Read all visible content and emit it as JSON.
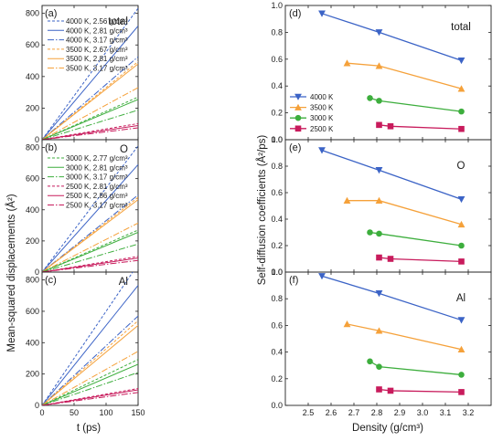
{
  "chart_data": [
    {
      "type": "line",
      "panel": "(a)",
      "label": "total",
      "xlim": [
        0,
        150
      ],
      "ylim": [
        0,
        850
      ],
      "series": [
        {
          "name": "4000 K, 2.56 g/cm³",
          "color": "#3b63c6",
          "dash": "3,2",
          "slope": 5.55
        },
        {
          "name": "4000 K, 2.81 g/cm³",
          "color": "#3b63c6",
          "dash": "",
          "slope": 4.8
        },
        {
          "name": "4000 K, 3.17 g/cm³",
          "color": "#3b63c6",
          "dash": "7,2,1.5,2",
          "slope": 3.5
        },
        {
          "name": "3500 K, 2.67 g/cm³",
          "color": "#f5a13a",
          "dash": "3,2",
          "slope": 3.3
        },
        {
          "name": "3500 K, 2.81 g/cm³",
          "color": "#f5a13a",
          "dash": "",
          "slope": 3.2
        },
        {
          "name": "3500 K, 3.17 g/cm³",
          "color": "#f5a13a",
          "dash": "7,2,1.5,2",
          "slope": 2.2
        },
        {
          "color": "#3dae3d",
          "dash": "3,2",
          "slope": 1.8
        },
        {
          "color": "#3dae3d",
          "dash": "",
          "slope": 1.7
        },
        {
          "color": "#3dae3d",
          "dash": "7,2,1.5,2",
          "slope": 1.25
        },
        {
          "color": "#c81b5c",
          "dash": "3,2",
          "slope": 0.68
        },
        {
          "color": "#c81b5c",
          "dash": "",
          "slope": 0.6
        },
        {
          "color": "#c81b5c",
          "dash": "7,2,1.5,2",
          "slope": 0.5
        }
      ]
    },
    {
      "type": "line",
      "panel": "(b)",
      "label": "O",
      "xlim": [
        0,
        150
      ],
      "ylim": [
        0,
        850
      ],
      "series": [
        {
          "color": "#3b63c6",
          "dash": "3,2",
          "slope": 5.4
        },
        {
          "color": "#3b63c6",
          "dash": "",
          "slope": 4.6
        },
        {
          "color": "#3b63c6",
          "dash": "7,2,1.5,2",
          "slope": 3.3
        },
        {
          "color": "#f5a13a",
          "dash": "3,2",
          "slope": 3.2
        },
        {
          "color": "#f5a13a",
          "dash": "",
          "slope": 3.1
        },
        {
          "color": "#f5a13a",
          "dash": "7,2,1.5,2",
          "slope": 2.1
        },
        {
          "name": "3000 K, 2.77 g/cm³",
          "color": "#3dae3d",
          "dash": "3,2",
          "slope": 1.8
        },
        {
          "name": "3000 K, 2.81 g/cm³",
          "color": "#3dae3d",
          "dash": "",
          "slope": 1.7
        },
        {
          "name": "3000 K, 3.17 g/cm³",
          "color": "#3dae3d",
          "dash": "7,2,1.5,2",
          "slope": 1.2
        },
        {
          "name": "2500 K, 2.81 g/cm³",
          "color": "#c81b5c",
          "dash": "3,2",
          "slope": 0.67
        },
        {
          "name": "2500 K, 2.86 g/cm³",
          "color": "#c81b5c",
          "dash": "",
          "slope": 0.6
        },
        {
          "name": "2500 K, 3.17 g/cm³",
          "color": "#c81b5c",
          "dash": "7,2,1.5,2",
          "slope": 0.5
        }
      ]
    },
    {
      "type": "line",
      "panel": "(c)",
      "label": "Al",
      "xlim": [
        0,
        150
      ],
      "ylim": [
        0,
        850
      ],
      "series": [
        {
          "color": "#3b63c6",
          "dash": "3,2",
          "slope": 6.0
        },
        {
          "color": "#3b63c6",
          "dash": "",
          "slope": 5.1
        },
        {
          "color": "#3b63c6",
          "dash": "7,2,1.5,2",
          "slope": 3.8
        },
        {
          "color": "#f5a13a",
          "dash": "3,2",
          "slope": 3.6
        },
        {
          "color": "#f5a13a",
          "dash": "",
          "slope": 3.4
        },
        {
          "color": "#f5a13a",
          "dash": "7,2,1.5,2",
          "slope": 2.3
        },
        {
          "color": "#3dae3d",
          "dash": "3,2",
          "slope": 1.95
        },
        {
          "color": "#3dae3d",
          "dash": "",
          "slope": 1.75
        },
        {
          "color": "#3dae3d",
          "dash": "7,2,1.5,2",
          "slope": 1.4
        },
        {
          "color": "#c81b5c",
          "dash": "3,2",
          "slope": 0.72
        },
        {
          "color": "#c81b5c",
          "dash": "",
          "slope": 0.66
        },
        {
          "color": "#c81b5c",
          "dash": "7,2,1.5,2",
          "slope": 0.55
        }
      ]
    },
    {
      "type": "line",
      "panel": "(d)",
      "label": "total",
      "xlim": [
        2.4,
        3.3
      ],
      "ylim": [
        0.0,
        1.0
      ],
      "series": [
        {
          "name": "4000 K",
          "color": "#3b63c6",
          "marker": "triangle-down",
          "x": [
            2.56,
            2.81,
            3.17
          ],
          "y": [
            0.94,
            0.8,
            0.59
          ]
        },
        {
          "name": "3500 K",
          "color": "#f5a13a",
          "marker": "triangle-up",
          "x": [
            2.67,
            2.81,
            3.17
          ],
          "y": [
            0.57,
            0.55,
            0.38
          ]
        },
        {
          "name": "3000 K",
          "color": "#3dae3d",
          "marker": "circle",
          "x": [
            2.77,
            2.81,
            3.17
          ],
          "y": [
            0.31,
            0.29,
            0.21
          ]
        },
        {
          "name": "2500 K",
          "color": "#c81b5c",
          "marker": "square",
          "x": [
            2.81,
            2.86,
            3.17
          ],
          "y": [
            0.11,
            0.1,
            0.08
          ]
        }
      ]
    },
    {
      "type": "line",
      "panel": "(e)",
      "label": "O",
      "xlim": [
        2.4,
        3.3
      ],
      "ylim": [
        0.0,
        1.0
      ],
      "series": [
        {
          "color": "#3b63c6",
          "marker": "triangle-down",
          "x": [
            2.56,
            2.81,
            3.17
          ],
          "y": [
            0.92,
            0.77,
            0.55
          ]
        },
        {
          "color": "#f5a13a",
          "marker": "triangle-up",
          "x": [
            2.67,
            2.81,
            3.17
          ],
          "y": [
            0.54,
            0.54,
            0.36
          ]
        },
        {
          "color": "#3dae3d",
          "marker": "circle",
          "x": [
            2.77,
            2.81,
            3.17
          ],
          "y": [
            0.3,
            0.29,
            0.2
          ]
        },
        {
          "color": "#c81b5c",
          "marker": "square",
          "x": [
            2.81,
            2.86,
            3.17
          ],
          "y": [
            0.11,
            0.1,
            0.08
          ]
        }
      ]
    },
    {
      "type": "line",
      "panel": "(f)",
      "label": "Al",
      "xlim": [
        2.4,
        3.3
      ],
      "ylim": [
        0.0,
        1.0
      ],
      "series": [
        {
          "color": "#3b63c6",
          "marker": "triangle-down",
          "x": [
            2.56,
            2.81,
            3.17
          ],
          "y": [
            0.97,
            0.84,
            0.64
          ]
        },
        {
          "color": "#f5a13a",
          "marker": "triangle-up",
          "x": [
            2.67,
            2.81,
            3.17
          ],
          "y": [
            0.61,
            0.56,
            0.42
          ]
        },
        {
          "color": "#3dae3d",
          "marker": "circle",
          "x": [
            2.77,
            2.81,
            3.17
          ],
          "y": [
            0.33,
            0.29,
            0.23
          ]
        },
        {
          "color": "#c81b5c",
          "marker": "square",
          "x": [
            2.81,
            2.86,
            3.17
          ],
          "y": [
            0.12,
            0.11,
            0.1
          ]
        }
      ]
    }
  ],
  "axes": {
    "left_ylabel": "Mean-squared displacements (Å²)",
    "left_xlabel": "t (ps)",
    "left_xticks": [
      "0",
      "50",
      "100",
      "150"
    ],
    "left_yticks": [
      "0",
      "200",
      "400",
      "600",
      "800"
    ],
    "right_ylabel": "Self-diffusion coefficients (Å²/ps)",
    "right_xlabel": "Density (g/cm³)",
    "right_xticks": [
      "2.5",
      "2.6",
      "2.7",
      "2.8",
      "2.9",
      "3.0",
      "3.1",
      "3.2"
    ],
    "right_yticks": [
      "0.0",
      "0.2",
      "0.4",
      "0.6",
      "0.8",
      "1.0"
    ]
  }
}
